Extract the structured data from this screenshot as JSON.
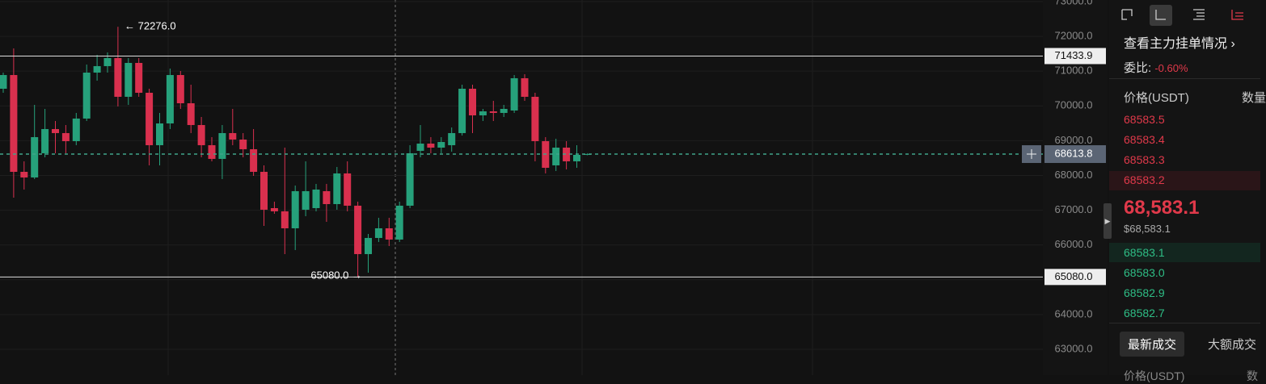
{
  "chart_data": {
    "type": "candlestick",
    "open": [
      70494,
      70888,
      68104,
      67942,
      68638,
      69334,
      69218,
      68986,
      69636,
      70958,
      71144,
      71376,
      70262,
      71236,
      70378,
      68870,
      69496,
      70888,
      70076,
      69450,
      68870,
      68476,
      69218,
      69032,
      68754,
      68104,
      67060,
      66968,
      66480,
      67014,
      67060,
      67548,
      67176,
      68058,
      67130,
      65738,
      66202,
      66480,
      66156,
      67130,
      68708,
      68916,
      68800,
      68870,
      69218,
      70494,
      69728,
      69844,
      69798,
      69868,
      70796,
      70262,
      68986,
      68290,
      68800,
      68406,
      68600
    ],
    "high": [
      70958,
      71654,
      68406,
      70030,
      69914,
      69566,
      69450,
      69798,
      71190,
      71468,
      71538,
      72276,
      71376,
      71376,
      70494,
      69798,
      71074,
      71004,
      70610,
      69682,
      69102,
      69450,
      69914,
      69218,
      69334,
      68290,
      67246,
      68800,
      67710,
      68406,
      67757,
      67757,
      68244,
      68406,
      67246,
      66318,
      66782,
      66782,
      67246,
      68870,
      69450,
      69102,
      69102,
      69380,
      70610,
      70610,
      69914,
      70146,
      70030,
      70888,
      70912,
      70378,
      69102,
      69056,
      68986,
      68870,
      68640
    ],
    "low": [
      70378,
      67362,
      67594,
      67896,
      68522,
      68638,
      68638,
      68870,
      69566,
      70726,
      70958,
      69984,
      70030,
      70262,
      68290,
      68290,
      69334,
      69914,
      69218,
      68522,
      68406,
      67896,
      68870,
      68522,
      67988,
      66550,
      66898,
      65738,
      65854,
      66828,
      66968,
      66666,
      67014,
      66968,
      65080,
      65204,
      66086,
      65970,
      66086,
      67060,
      68522,
      68638,
      68638,
      68684,
      69148,
      69218,
      69566,
      69566,
      69682,
      69798,
      70146,
      68406,
      68058,
      68128,
      68174,
      68220,
      68580
    ],
    "close": [
      70888,
      68104,
      67942,
      69102,
      69334,
      69218,
      68986,
      69636,
      70958,
      71144,
      71376,
      70262,
      71236,
      70378,
      68870,
      69496,
      70888,
      70076,
      69450,
      68870,
      68476,
      69218,
      69032,
      68754,
      68104,
      67014,
      66968,
      66480,
      67548,
      67548,
      67594,
      67176,
      68058,
      67130,
      65738,
      66202,
      66480,
      66156,
      67130,
      68638,
      68916,
      68800,
      68962,
      69218,
      70494,
      69728,
      69844,
      69798,
      69914,
      70796,
      70262,
      68986,
      68220,
      68800,
      68406,
      68592,
      68613.8
    ],
    "up_color": "#26a17b",
    "down_color": "#d9304e",
    "ylim": [
      62257,
      73046
    ],
    "yticks": [
      {
        "value": 73000,
        "label": "73000.0"
      },
      {
        "value": 72000,
        "label": "72000.0"
      },
      {
        "value": 71000,
        "label": "71000.0"
      },
      {
        "value": 70000,
        "label": "70000.0"
      },
      {
        "value": 69000,
        "label": "69000.0"
      },
      {
        "value": 68000,
        "label": "68000.0"
      },
      {
        "value": 67000,
        "label": "67000.0"
      },
      {
        "value": 66000,
        "label": "66000.0"
      },
      {
        "value": 65000,
        "label": "65000.0"
      },
      {
        "value": 64000,
        "label": "64000.0"
      },
      {
        "value": 63000,
        "label": "63000.0"
      }
    ],
    "grid": true,
    "hlines": [
      {
        "value": 71433.9,
        "label": "71433.9"
      },
      {
        "value": 65080,
        "label": "65080.0"
      }
    ],
    "last_price": {
      "value": 68613.8,
      "label": "68613.8"
    },
    "annotations": [
      "← 72276.0",
      "65080.0 →"
    ]
  },
  "panel": {
    "link": "查看主力挂单情况",
    "ratio_label": "委比:",
    "ratio_value": "-0.60%",
    "headers": [
      "价格(USDT)",
      "数量"
    ],
    "asks": [
      "68583.5",
      "68583.4",
      "68583.3",
      "68583.2"
    ],
    "last_price": "68,583.1",
    "last_price_usd": "$68,583.1",
    "bids": [
      "68583.1",
      "68583.0",
      "68582.9",
      "68582.7"
    ],
    "tabs": [
      "最新成交",
      "大额成交"
    ],
    "trades_header": [
      "价格(USDT)",
      "数"
    ]
  }
}
